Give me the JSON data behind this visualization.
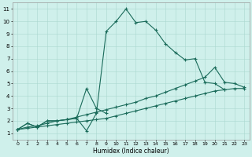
{
  "xlabel": "Humidex (Indice chaleur)",
  "bg_color": "#cff0eb",
  "line_color": "#1a6b5a",
  "grid_color": "#aad8d0",
  "xlim": [
    -0.5,
    23.5
  ],
  "ylim": [
    0.5,
    11.5
  ],
  "xticks": [
    0,
    1,
    2,
    3,
    4,
    5,
    6,
    7,
    8,
    9,
    10,
    11,
    12,
    13,
    14,
    15,
    16,
    17,
    18,
    19,
    20,
    21,
    22,
    23
  ],
  "yticks": [
    1,
    2,
    3,
    4,
    5,
    6,
    7,
    8,
    9,
    10,
    11
  ],
  "line1_x": [
    0,
    1,
    2,
    3,
    4,
    5,
    6,
    7,
    8,
    9,
    10,
    11,
    12,
    13,
    14,
    15,
    16,
    17,
    18,
    19,
    20,
    21
  ],
  "line1_y": [
    1.3,
    1.8,
    1.5,
    2.0,
    2.0,
    2.1,
    2.2,
    1.2,
    2.6,
    9.2,
    10.0,
    11.0,
    9.9,
    10.0,
    9.3,
    8.2,
    7.5,
    6.9,
    7.0,
    5.1,
    5.0,
    4.5
  ],
  "line2_x": [
    0,
    1,
    2,
    3,
    4,
    5,
    6,
    7,
    8,
    9
  ],
  "line2_y": [
    1.3,
    1.8,
    1.5,
    2.0,
    2.0,
    2.1,
    2.2,
    4.6,
    3.0,
    2.6
  ],
  "line3_x": [
    0,
    1,
    2,
    3,
    4,
    5,
    6,
    7,
    8,
    9,
    10,
    11,
    12,
    13,
    14,
    15,
    16,
    17,
    18,
    19,
    20,
    21,
    22,
    23
  ],
  "line3_y": [
    1.3,
    1.5,
    1.6,
    1.8,
    2.0,
    2.1,
    2.3,
    2.5,
    2.7,
    2.9,
    3.1,
    3.3,
    3.5,
    3.8,
    4.0,
    4.3,
    4.6,
    4.9,
    5.2,
    5.5,
    6.3,
    5.1,
    5.0,
    4.7
  ],
  "line4_x": [
    0,
    1,
    2,
    3,
    4,
    5,
    6,
    7,
    8,
    9,
    10,
    11,
    12,
    13,
    14,
    15,
    16,
    17,
    18,
    19,
    20,
    21,
    22,
    23
  ],
  "line4_y": [
    1.3,
    1.4,
    1.5,
    1.6,
    1.7,
    1.8,
    1.9,
    2.0,
    2.1,
    2.2,
    2.4,
    2.6,
    2.8,
    3.0,
    3.2,
    3.4,
    3.6,
    3.8,
    4.0,
    4.2,
    4.4,
    4.5,
    4.6,
    4.6
  ]
}
